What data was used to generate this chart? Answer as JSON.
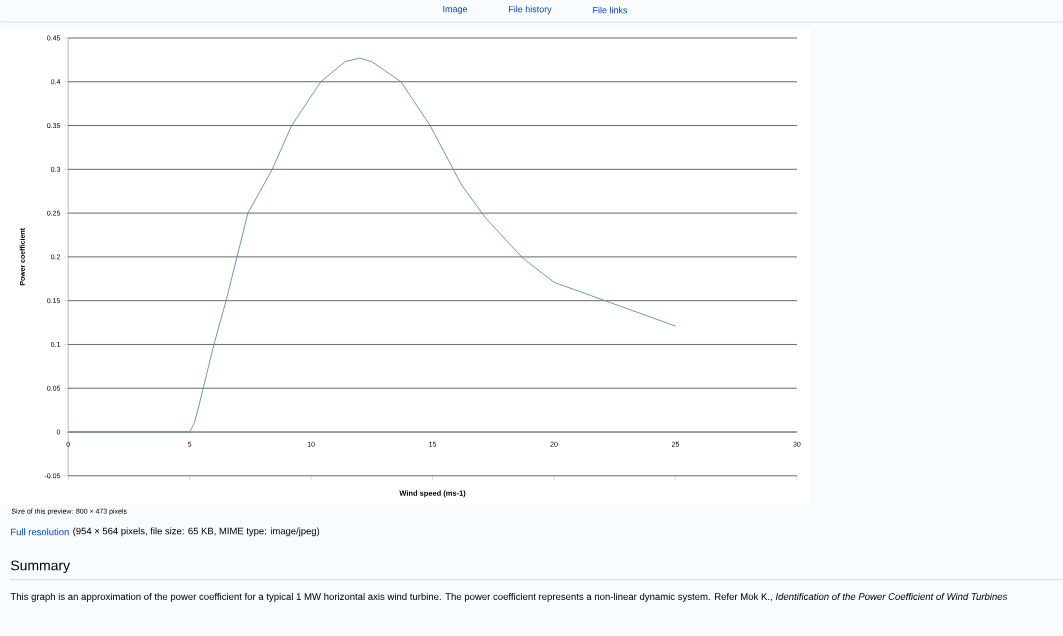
{
  "chart_data": {
    "type": "line",
    "xlabel": "Wind speed (ms-1)",
    "ylabel": "Power coefficient",
    "xlim": [
      0,
      30
    ],
    "ylim": [
      -0.05,
      0.45
    ],
    "xticks": [
      0,
      5,
      10,
      15,
      20,
      25,
      30
    ],
    "yticks": [
      -0.05,
      0,
      0.05,
      0.1,
      0.15,
      0.2,
      0.25,
      0.3,
      0.35,
      0.4,
      0.45
    ],
    "grid": "y",
    "series": [
      {
        "color": "#5b8fa8",
        "x": [
          0,
          1,
          2,
          3,
          4,
          5,
          5.2,
          5.4,
          6.0,
          6.5,
          7.4,
          8.4,
          9.2,
          10.4,
          11.4,
          12.0,
          12.5,
          13.7,
          14.9,
          16.2,
          17.2,
          18.7,
          20.0,
          22.1,
          25.0
        ],
        "values": [
          0,
          0,
          0,
          0,
          0,
          0,
          0.011,
          0.032,
          0.1,
          0.15,
          0.25,
          0.3,
          0.35,
          0.4,
          0.423,
          0.427,
          0.423,
          0.4,
          0.35,
          0.282,
          0.244,
          0.199,
          0.171,
          0.15,
          0.121
        ]
      }
    ],
    "annotations": [
      "Image",
      "File history",
      "File links",
      "Size of this preview: 800 × 473 pixels",
      "Full resolution",
      "(954 × 564 pixels, file size: 65 KB, MIME type: image/jpeg)",
      "Summary",
      "This graph is an approximation of the power coefficient for a typical 1 MW horizontal axis wind turbine. The power coefficient represents a non-linear dynamic system. Refer Mok K., *Identification of the Power Coefficient of Wind Turbines*"
    ]
  }
}
